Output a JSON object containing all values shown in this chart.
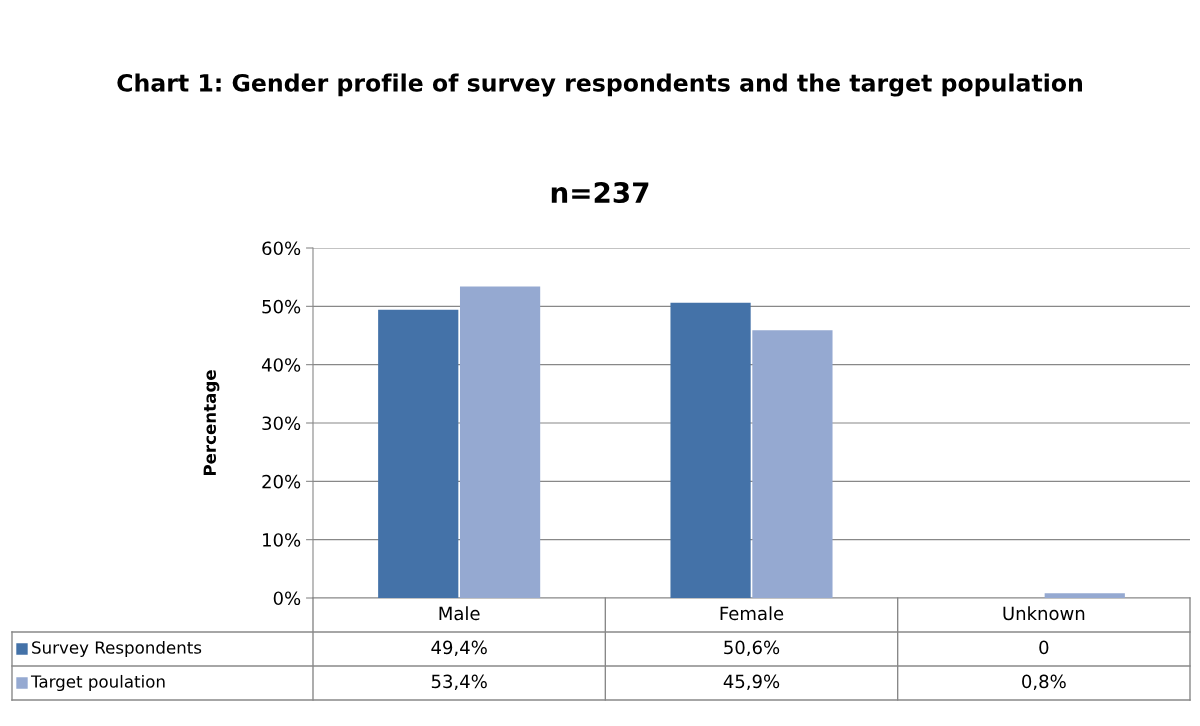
{
  "chart_data": {
    "type": "bar",
    "title": "Chart 1: Gender profile of survey respondents and the target population",
    "subtitle": "n=237",
    "ylabel": "Percentage",
    "categories": [
      "Male",
      "Female",
      "Unknown"
    ],
    "series": [
      {
        "name": "Survey Respondents",
        "color": "#4472a8",
        "values": [
          49.4,
          50.6,
          0
        ],
        "value_labels": [
          "49,4%",
          "50,6%",
          "0"
        ]
      },
      {
        "name": "Target poulation",
        "color": "#95a9d1",
        "values": [
          53.4,
          45.9,
          0.8
        ],
        "value_labels": [
          "53,4%",
          "45,9%",
          "0,8%"
        ]
      }
    ],
    "ylim": [
      0,
      60
    ],
    "yticks": [
      {
        "value": 0,
        "label": "0%"
      },
      {
        "value": 10,
        "label": "10%"
      },
      {
        "value": 20,
        "label": "20%"
      },
      {
        "value": 30,
        "label": "30%"
      },
      {
        "value": 40,
        "label": "40%"
      },
      {
        "value": 50,
        "label": "50%"
      },
      {
        "value": 60,
        "label": "60%"
      }
    ],
    "grid": "y",
    "legend": "bottom"
  }
}
